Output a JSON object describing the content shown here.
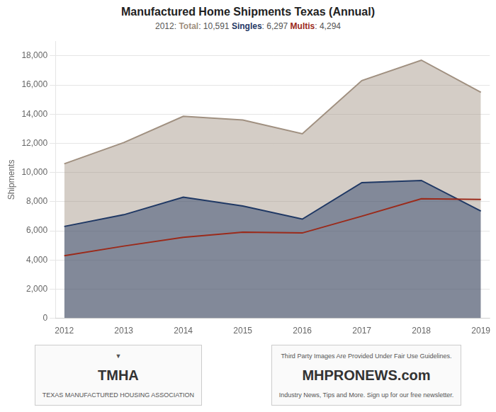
{
  "chart_data": {
    "type": "line",
    "title": "Manufactured Home Shipments Texas (Annual)",
    "subtitle": "2012: Total: 10,591 Singles: 6,297 Multis: 4,294",
    "x": [
      2012,
      2013,
      2014,
      2015,
      2016,
      2017,
      2018,
      2019
    ],
    "series": [
      {
        "name": "Total",
        "type": "area",
        "color": "#a09080",
        "values": [
          10591,
          12050,
          13850,
          13600,
          12650,
          16300,
          17700,
          15500
        ]
      },
      {
        "name": "Singles",
        "type": "area",
        "color": "#1f3864",
        "values": [
          6297,
          7100,
          8300,
          7700,
          6800,
          9300,
          9450,
          7350
        ]
      },
      {
        "name": "Multis",
        "type": "line",
        "color": "#9b2a1a",
        "values": [
          4294,
          4950,
          5550,
          5900,
          5850,
          7000,
          8200,
          8150
        ]
      }
    ],
    "ylabel": "Shipments",
    "xlim": [
      2011.85,
      2019.15
    ],
    "xticks": [
      2012,
      2013,
      2014,
      2015,
      2016,
      2017,
      2018,
      2019
    ],
    "ylim": [
      0,
      19000
    ],
    "yticks": [
      0,
      {
        "value": 2000,
        "label": "2,000"
      },
      {
        "value": 4000,
        "label": "4,000"
      },
      {
        "value": 6000,
        "label": "6,000"
      },
      {
        "value": 8000,
        "label": "8,000"
      },
      {
        "value": 10000,
        "label": "10,000"
      },
      {
        "value": 12000,
        "label": "12,000"
      },
      {
        "value": 14000,
        "label": "14,000"
      },
      {
        "value": 16000,
        "label": "16,000"
      },
      {
        "value": 18000,
        "label": "18,000"
      }
    ],
    "grid": true,
    "annotations": [
      "▼",
      "TMHA",
      "TEXAS MANUFACTURED HOUSING ASSOCIATION",
      "Third Party Images Are Provided Under Fair Use Guidelines.",
      "MHPRONEWS.com",
      "Industry News, Tips and More. Sign up for our free newsletter."
    ]
  }
}
